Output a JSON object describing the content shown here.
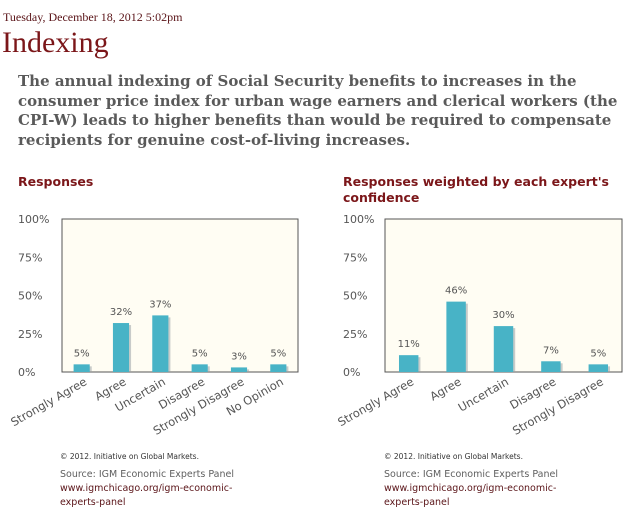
{
  "header": {
    "timestamp": "Tuesday, December 18, 2012 5:02pm",
    "title": "Indexing",
    "question": "The annual indexing of Social Security benefits to increases in the consumer price index for urban wage earners and clerical workers (the CPI-W) leads to higher benefits than would be required to compensate recipients for genuine cost-of-living increases."
  },
  "colors": {
    "bar": "#48b3c6",
    "plot_bg": "#fffdf3",
    "accent": "#7b1619"
  },
  "chart_data": [
    {
      "type": "bar",
      "title": "Responses",
      "categories": [
        "Strongly Agree",
        "Agree",
        "Uncertain",
        "Disagree",
        "Strongly Disagree",
        "No Opinion"
      ],
      "values": [
        5,
        32,
        37,
        5,
        3,
        5
      ],
      "data_labels": [
        "5%",
        "32%",
        "37%",
        "5%",
        "3%",
        "5%"
      ],
      "yticks": [
        "0%",
        "25%",
        "50%",
        "75%",
        "100%"
      ],
      "ylim": [
        0,
        100
      ],
      "xlabel": "",
      "ylabel": ""
    },
    {
      "type": "bar",
      "title": "Responses weighted by each expert's confidence",
      "categories": [
        "Strongly Agree",
        "Agree",
        "Uncertain",
        "Disagree",
        "Strongly Disagree"
      ],
      "values": [
        11,
        46,
        30,
        7,
        5
      ],
      "data_labels": [
        "11%",
        "46%",
        "30%",
        "7%",
        "5%"
      ],
      "yticks": [
        "0%",
        "25%",
        "50%",
        "75%",
        "100%"
      ],
      "ylim": [
        0,
        100
      ],
      "xlabel": "",
      "ylabel": ""
    }
  ],
  "footer": {
    "copyright": "© 2012. Initiative on Global Markets.",
    "source": "Source: IGM Economic Experts Panel",
    "url_line1": "www.igmchicago.org/igm-economic-",
    "url_line2": "experts-panel"
  }
}
